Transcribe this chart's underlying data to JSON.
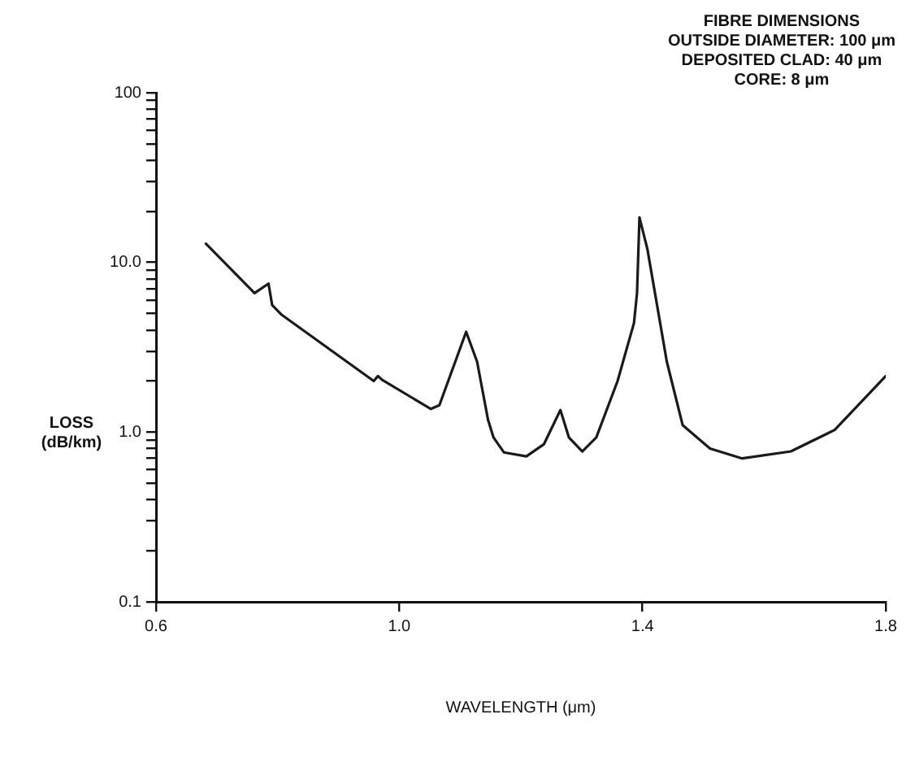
{
  "chart_data": {
    "type": "line",
    "xlabel": "WAVELENGTH (μm)",
    "ylabel": "LOSS (dB/km)",
    "annotations": [
      "FIBRE DIMENSIONS",
      "OUTSIDE DIAMETER: 100 μm",
      "DEPOSITED CLAD: 40 μm",
      "CORE: 8 μm"
    ],
    "x": [
      0.682,
      0.762,
      0.785,
      0.791,
      0.807,
      0.958,
      0.965,
      0.972,
      1.052,
      1.066,
      1.11,
      1.128,
      1.146,
      1.155,
      1.172,
      1.209,
      1.238,
      1.265,
      1.279,
      1.301,
      1.324,
      1.359,
      1.386,
      1.391,
      1.395,
      1.408,
      1.44,
      1.466,
      1.511,
      1.564,
      1.644,
      1.716,
      1.8
    ],
    "series": [
      {
        "color": "#1a1a1a",
        "values": [
          12.9,
          6.6,
          7.5,
          5.6,
          4.9,
          2.0,
          2.14,
          2.03,
          1.37,
          1.44,
          3.9,
          2.6,
          1.18,
          0.93,
          0.76,
          0.72,
          0.85,
          1.35,
          0.93,
          0.77,
          0.93,
          2.0,
          4.4,
          6.6,
          18.4,
          12,
          2.6,
          1.1,
          0.8,
          0.7,
          0.77,
          1.03,
          2.14
        ]
      }
    ],
    "log": "y",
    "grid": false,
    "legend": false,
    "marker": "none",
    "line_style": "solid",
    "xlim": [
      0.6,
      1.8
    ],
    "xticks": [
      0.6,
      {
        "value": 1,
        "label": "1.0"
      },
      1.4,
      1.8
    ],
    "ylim": [
      0.1,
      100
    ],
    "yticks": [
      0.1,
      {
        "value": 0.2,
        "label": null
      },
      {
        "value": 0.3,
        "label": null
      },
      {
        "value": 0.4,
        "label": null
      },
      {
        "value": 0.5,
        "label": null
      },
      {
        "value": 0.6,
        "label": null
      },
      {
        "value": 0.7,
        "label": null
      },
      {
        "value": 0.8,
        "label": null
      },
      {
        "value": 0.9,
        "label": null
      },
      {
        "value": 1,
        "label": "1.0"
      },
      {
        "value": 2,
        "label": null
      },
      {
        "value": 3,
        "label": null
      },
      {
        "value": 4,
        "label": null
      },
      {
        "value": 5,
        "label": null
      },
      {
        "value": 6,
        "label": null
      },
      {
        "value": 7,
        "label": null
      },
      {
        "value": 8,
        "label": null
      },
      {
        "value": 9,
        "label": null
      },
      {
        "value": 10,
        "label": "10.0"
      },
      {
        "value": 20,
        "label": null
      },
      {
        "value": 30,
        "label": null
      },
      {
        "value": 40,
        "label": null
      },
      {
        "value": 50,
        "label": null
      },
      {
        "value": 60,
        "label": null
      },
      {
        "value": 70,
        "label": null
      },
      {
        "value": 80,
        "label": null
      },
      {
        "value": 90,
        "label": null
      },
      100
    ]
  }
}
